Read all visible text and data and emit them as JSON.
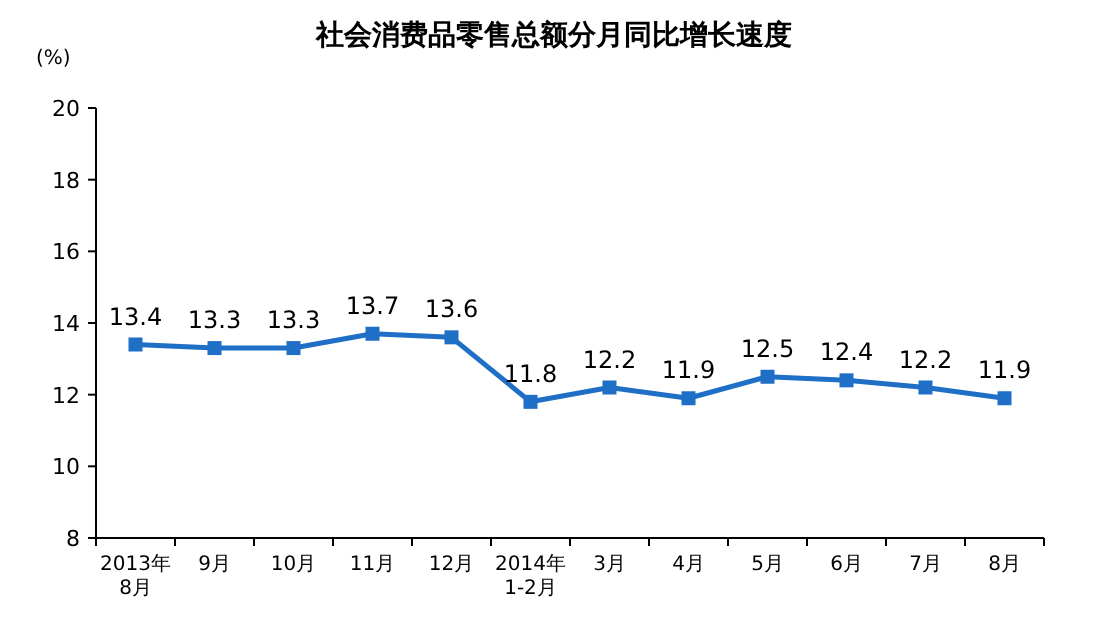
{
  "chart_data": {
    "type": "line",
    "title": "社会消费品零售总额分月同比增长速度",
    "ylabel": "(%)",
    "categories": [
      "2013年\n8月",
      "9月",
      "10月",
      "11月",
      "12月",
      "2014年\n1-2月",
      "3月",
      "4月",
      "5月",
      "6月",
      "7月",
      "8月"
    ],
    "series": [
      {
        "color": "#1f6fc6",
        "values": [
          13.4,
          13.3,
          13.3,
          13.7,
          13.6,
          11.8,
          12.2,
          11.9,
          12.5,
          12.4,
          12.2,
          11.9
        ]
      }
    ],
    "ylim": [
      8,
      20
    ],
    "yticks": [
      8,
      10,
      12,
      14,
      16,
      18,
      20
    ],
    "data_labels": true,
    "marker": "square",
    "grid": false
  }
}
